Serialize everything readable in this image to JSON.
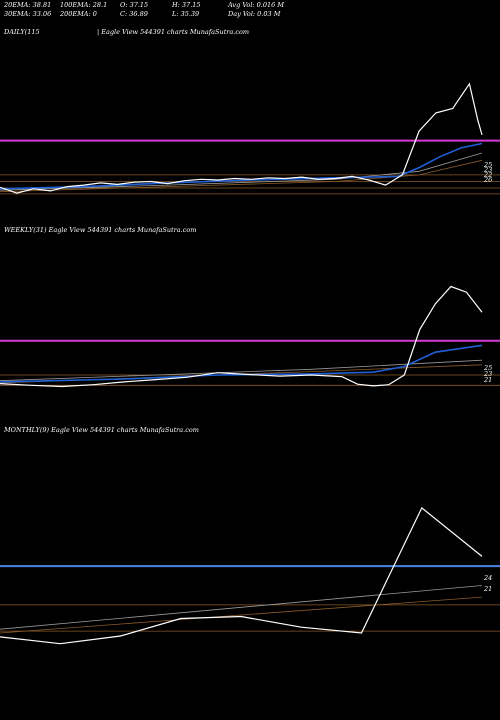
{
  "header": {
    "row1": [
      "20EMA: 38.81",
      "100EMA: 28.1",
      "O: 37.15",
      "H: 37.15",
      "Avg Vol: 0.016  M"
    ],
    "row2": [
      "30EMA: 33.06",
      "200EMA: 0",
      "C: 36.89",
      "L: 35.39",
      "Day Vol: 0.03 M"
    ]
  },
  "colors": {
    "background": "#000000",
    "price": "#ffffff",
    "ema_blue": "#1f5fd6",
    "magenta": "#d63ad6",
    "blue_level": "#4a84e8",
    "brown": "#8a5a2a",
    "grey": "#9a9a9a"
  },
  "chart_data": [
    {
      "type": "line",
      "panel_label": "DAILY(115",
      "watermark": "| Eagle  View  544391 charts MunafaSutra.com",
      "y_tick_labels": [
        "25",
        "23",
        "22",
        "26"
      ],
      "price": {
        "x": [
          0,
          4,
          8,
          12,
          16,
          20,
          24,
          28,
          32,
          36,
          40,
          44,
          48,
          52,
          56,
          60,
          64,
          68,
          72,
          76,
          80,
          84,
          88,
          92,
          96,
          100,
          104,
          108,
          112,
          114,
          115
        ],
        "y": [
          22.8,
          22.0,
          22.6,
          22.3,
          22.9,
          23.1,
          23.4,
          23.2,
          23.5,
          23.6,
          23.3,
          23.7,
          23.9,
          23.8,
          24.0,
          23.9,
          24.1,
          24.0,
          24.2,
          23.9,
          24.0,
          24.3,
          23.8,
          23.1,
          24.5,
          30.5,
          33.0,
          33.6,
          37.0,
          32.0,
          30.0
        ]
      },
      "ema_blue": {
        "x": [
          0,
          20,
          40,
          60,
          80,
          95,
          100,
          105,
          110,
          115
        ],
        "y": [
          22.6,
          22.9,
          23.4,
          23.8,
          24.1,
          24.3,
          25.5,
          27.0,
          28.2,
          28.8
        ]
      },
      "averages": [
        {
          "x": [
            0,
            40,
            80,
            100,
            115
          ],
          "y": [
            22.4,
            23.1,
            23.9,
            25.0,
            27.5
          ]
        },
        {
          "x": [
            0,
            40,
            80,
            100,
            115
          ],
          "y": [
            22.2,
            22.9,
            23.6,
            24.5,
            26.5
          ]
        }
      ],
      "levels": [
        {
          "y": 29.2,
          "color": "magenta"
        },
        {
          "y": 24.5,
          "color": "brown"
        },
        {
          "y": 23.6,
          "color": "brown"
        },
        {
          "y": 22.7,
          "color": "brown"
        },
        {
          "y": 21.9,
          "color": "brown"
        }
      ],
      "ylim": [
        19.0,
        43.0
      ]
    },
    {
      "type": "line",
      "panel_label": "WEEKLY(31) Eagle  View  544391 charts MunafaSutra.com",
      "y_tick_labels": [
        "25",
        "23",
        "21"
      ],
      "price": {
        "x": [
          0,
          2,
          4,
          6,
          8,
          10,
          12,
          14,
          16,
          18,
          20,
          22,
          23,
          24,
          25,
          26,
          27,
          28,
          29,
          30,
          31
        ],
        "y": [
          21.5,
          21.2,
          21.0,
          21.3,
          21.8,
          22.2,
          22.6,
          23.4,
          23.1,
          22.8,
          23.0,
          22.7,
          21.4,
          21.1,
          21.3,
          23.0,
          31.0,
          35.5,
          38.5,
          37.5,
          34.0
        ]
      },
      "ema_blue": {
        "x": [
          0,
          8,
          14,
          20,
          24,
          26,
          28,
          31
        ],
        "y": [
          21.8,
          22.3,
          23.0,
          23.2,
          23.5,
          24.5,
          27.0,
          28.2
        ]
      },
      "averages": [
        {
          "x": [
            0,
            10,
            20,
            31
          ],
          "y": [
            22.0,
            23.0,
            24.0,
            25.6
          ]
        },
        {
          "x": [
            0,
            10,
            20,
            31
          ],
          "y": [
            21.6,
            22.6,
            23.6,
            24.8
          ]
        }
      ],
      "levels": [
        {
          "y": 29.0,
          "color": "magenta"
        },
        {
          "y": 23.0,
          "color": "brown"
        },
        {
          "y": 21.2,
          "color": "brown"
        }
      ],
      "ylim": [
        16.0,
        47.0
      ]
    },
    {
      "type": "line",
      "panel_label": "MONTHLY(9) Eagle  View  544391 charts MunafaSutra.com",
      "y_tick_labels": [
        "24",
        "21"
      ],
      "price": {
        "x": [
          0,
          1,
          2,
          3,
          4,
          5,
          6,
          7,
          8
        ],
        "y": [
          20.5,
          19.8,
          20.6,
          22.4,
          22.6,
          21.5,
          20.9,
          33.8,
          28.8
        ]
      },
      "averages": [
        {
          "x": [
            0,
            8
          ],
          "y": [
            21.3,
            25.8
          ]
        },
        {
          "x": [
            0,
            8
          ],
          "y": [
            20.9,
            24.6
          ]
        }
      ],
      "levels": [
        {
          "y": 27.8,
          "color": "blue_level"
        },
        {
          "y": 23.8,
          "color": "brown"
        },
        {
          "y": 21.1,
          "color": "brown"
        }
      ],
      "ylim": [
        14.0,
        41.0
      ]
    }
  ]
}
